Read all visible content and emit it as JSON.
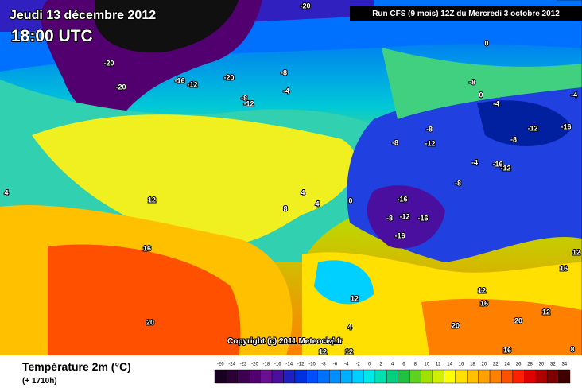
{
  "header": {
    "date": "Jeudi 13 décembre 2012",
    "time": "18:00 UTC",
    "run": "Run CFS (9 mois) 12Z du Mercredi 3 octobre 2012",
    "copyright": "Copyright (c) 2011 Meteociel.fr"
  },
  "legend": {
    "title": "Température 2m (°C)",
    "lead": "(+ 1710h)",
    "ticks": [
      -26,
      -24,
      -22,
      -20,
      -18,
      -16,
      -14,
      -12,
      -10,
      -8,
      -6,
      -4,
      -2,
      0,
      2,
      4,
      6,
      8,
      10,
      12,
      14,
      16,
      18,
      20,
      22,
      24,
      26,
      28,
      30,
      32,
      34
    ],
    "colors": [
      "#1a0020",
      "#2a0035",
      "#3d0050",
      "#520070",
      "#6a1090",
      "#4b0fa0",
      "#2020c0",
      "#0030e0",
      "#0050ff",
      "#0070ff",
      "#0090ff",
      "#00b0ff",
      "#00d0ff",
      "#00e8e8",
      "#00e0b0",
      "#00d080",
      "#20c040",
      "#60d020",
      "#a0e000",
      "#d0f000",
      "#ffff00",
      "#ffe000",
      "#ffc000",
      "#ffa000",
      "#ff8000",
      "#ff5000",
      "#ff2000",
      "#e00000",
      "#b00000",
      "#800000",
      "#400000"
    ]
  },
  "contour_labels": [
    -20,
    -20,
    -20,
    -16,
    -12,
    -20,
    -8,
    -4,
    -8,
    -12,
    0,
    -8,
    0,
    -4,
    -4,
    -8,
    -12,
    -8,
    -12,
    -16,
    -8,
    -4,
    -16,
    -12,
    -8,
    -16,
    -8,
    -12,
    -16,
    -16,
    0,
    4,
    8,
    4,
    12,
    16,
    20,
    12,
    16,
    12,
    12,
    16,
    12,
    20,
    20,
    4,
    4,
    12,
    12,
    16,
    8,
    4
  ]
}
